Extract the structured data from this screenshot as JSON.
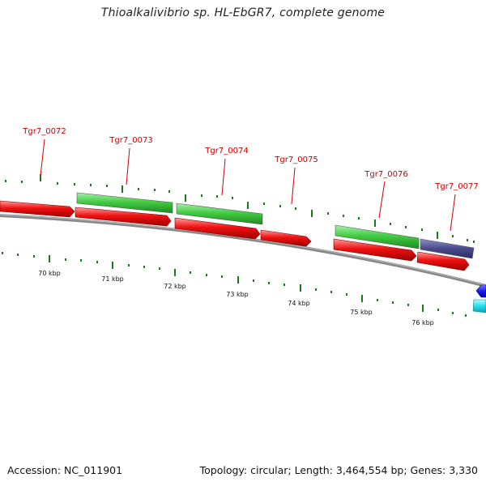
{
  "title": "Thioalkalivibrio sp. HL-EbGR7, complete genome",
  "footer": {
    "accession": "Accession: NC_011901",
    "summary": "Topology: circular; Length: 3,464,554 bp; Genes: 3,330"
  },
  "colors": {
    "cds_forward": "#44cc44",
    "cds_reverse": "#ee1111",
    "rna": "#4a4a8c",
    "blue_feature": "#1a1aee",
    "cyan_feature": "#22ddee",
    "label": "#cc0000",
    "tick": "#1a7a1a",
    "backbone": "#888888"
  },
  "gene_labels": [
    "Tgr7_0072",
    "Tgr7_0073",
    "Tgr7_0074",
    "Tgr7_0075",
    "Tgr7_0076",
    "Tgr7_0077"
  ],
  "scale_labels": [
    "70 kbp",
    "71 kbp",
    "72 kbp",
    "73 kbp",
    "74 kbp",
    "75 kbp",
    "76 kbp"
  ]
}
